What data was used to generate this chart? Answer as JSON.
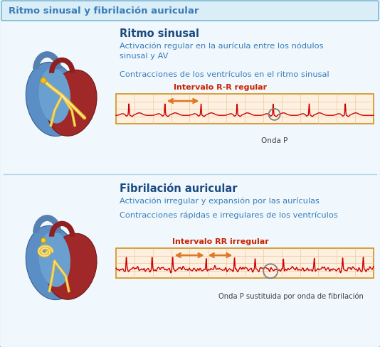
{
  "title": "Ritmo sinusal y fibrilación auricular",
  "title_color": "#3a7cb8",
  "title_bg": "#daeef8",
  "title_border": "#6aaccc",
  "bg_color": "#f0f8fd",
  "inner_bg": "#f0f8fd",
  "section1_title": "Ritmo sinusal",
  "section1_text1": "Activación regular en la aurícula entre los nódulos\nsinusal y AV",
  "section1_text2": "Contracciones de los ventrículos en el ritmo sinusal",
  "section1_arrow_label": "Intervalo R-R regular",
  "section1_onda_label": "Onda P",
  "section2_title": "Fibrilación auricular",
  "section2_text1": "Activación irregular y expansión por las aurículas",
  "section2_text2": "Contracciones rápidas e irregulares de los ventrículos",
  "section2_arrow_label": "Intervalo RR irregular",
  "section2_onda_label": "Onda P sustituida por onda de fibrilación",
  "text_color": "#3a7cb8",
  "heading_color": "#1a4a80",
  "label_color": "#cc2200",
  "grid_bg": "#fdf0e0",
  "grid_line": "#e8c090",
  "ecg_border": "#d4901c",
  "ecg_color": "#cc0000",
  "arrow_color": "#e07820",
  "circle_color": "#808080",
  "onda_text_color": "#404040",
  "heart1_blue": "#5590c8",
  "heart1_red": "#a82020",
  "heart1_yellow": "#e8c020",
  "heart_bg": "#f0f8fd",
  "div_line": "#b0d4e8"
}
